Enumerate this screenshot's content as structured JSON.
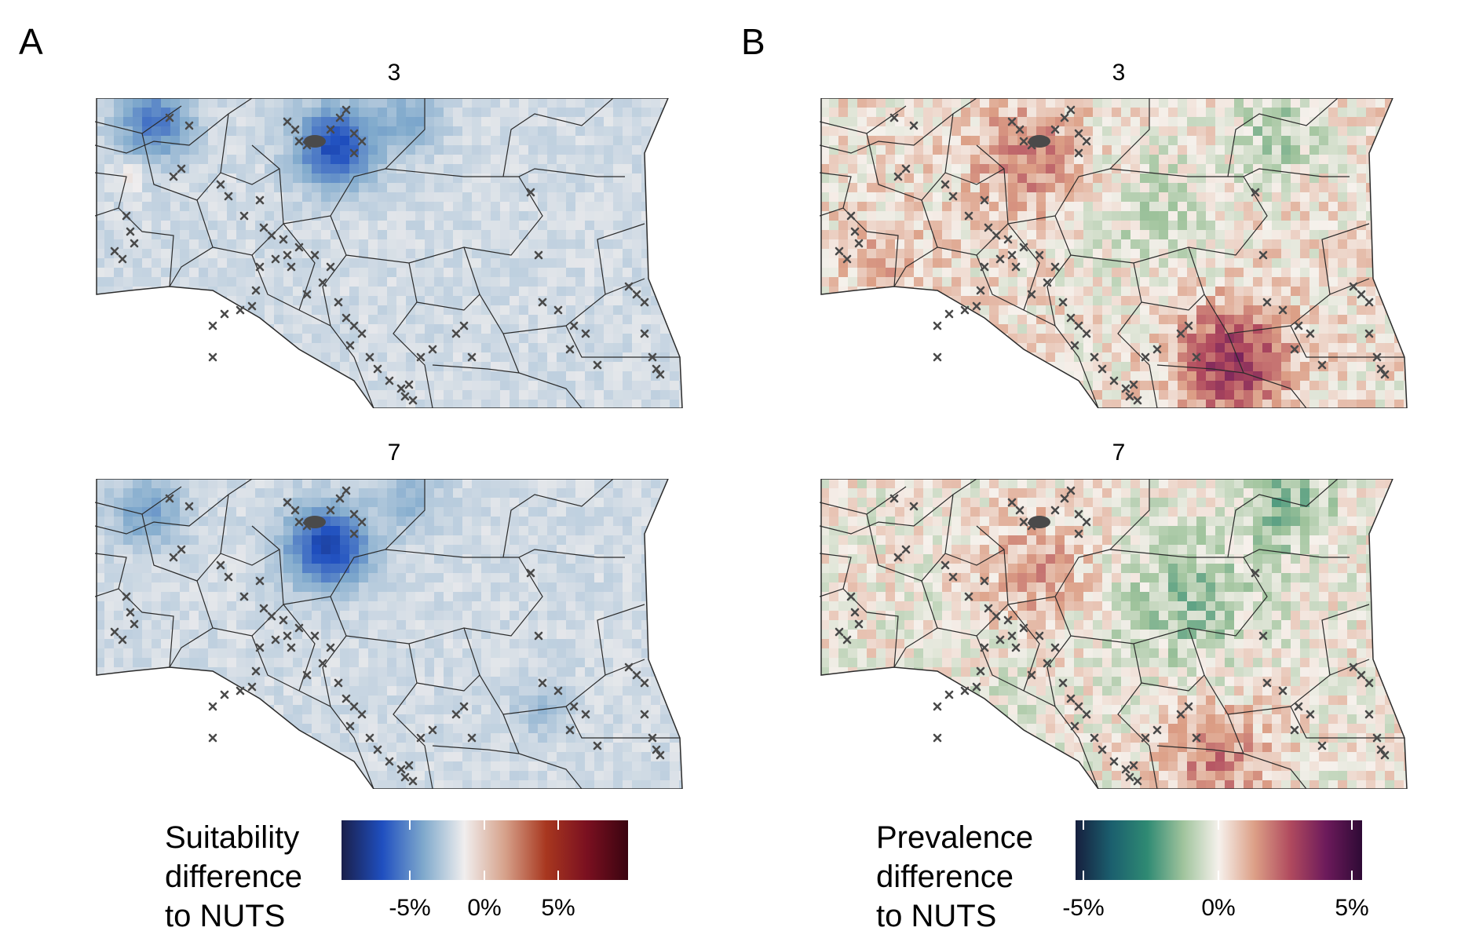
{
  "panels": [
    {
      "letter": "A",
      "maps": [
        {
          "title": "3"
        },
        {
          "title": "7"
        }
      ],
      "legend": {
        "title_lines": [
          "Suitability",
          "difference",
          "to NUTS"
        ],
        "ticks": [
          "-5%",
          "0%",
          "5%"
        ],
        "colors": [
          "#1a1f4a",
          "#1f4fc0",
          "#7fa9cc",
          "#f0eeee",
          "#d6a18a",
          "#a8371f",
          "#7a1020",
          "#3a0410"
        ]
      }
    },
    {
      "letter": "B",
      "maps": [
        {
          "title": "3"
        },
        {
          "title": "7"
        }
      ],
      "legend": {
        "title_lines": [
          "Prevalence",
          "difference",
          "to NUTS"
        ],
        "ticks": [
          "-5%",
          "0%",
          "5%"
        ],
        "colors": [
          "#161f3e",
          "#1b5f6e",
          "#2f8a73",
          "#9fc39c",
          "#f6f1ec",
          "#dc9f86",
          "#b04a5e",
          "#6c1a5b",
          "#2e0a35"
        ]
      }
    }
  ]
}
